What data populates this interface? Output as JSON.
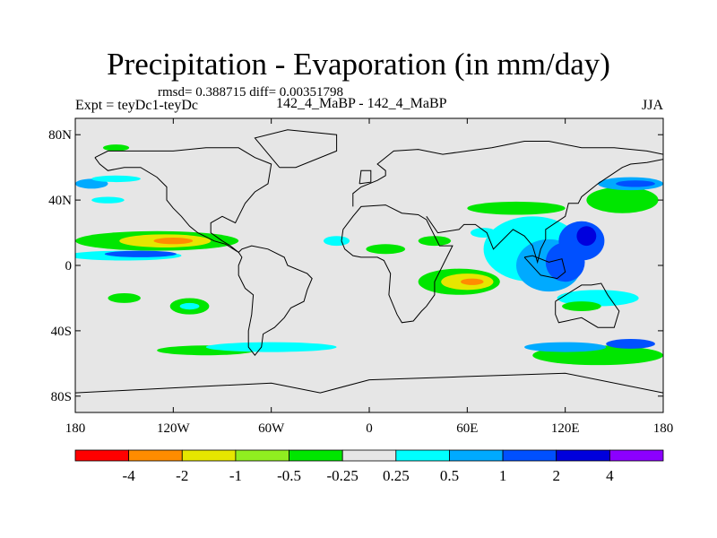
{
  "title": "Precipitation - Evaporation (in mm/day)",
  "stats": "rmsd= 0.388715 diff= 0.00351798",
  "subtitle_left": "Expt = teyDc1-teyDc",
  "subtitle_center": "142_4_MaBP - 142_4_MaBP",
  "subtitle_right": "JJA",
  "colors": {
    "levels": [
      "#ff0000",
      "#ff8c00",
      "#e6e600",
      "#90ee20",
      "#00e600",
      "#e6e6e6",
      "#00ffff",
      "#00aaff",
      "#0050ff",
      "#0000dd",
      "#8c00ff"
    ],
    "coast": "#000000"
  },
  "map": {
    "projection": "cylindrical-equidistant",
    "lon_range": [
      -180,
      180
    ],
    "lat_range": [
      -90,
      90
    ],
    "x_ticks": [
      {
        "value": -180,
        "label": "180"
      },
      {
        "value": -120,
        "label": "120W"
      },
      {
        "value": -60,
        "label": "60W"
      },
      {
        "value": 0,
        "label": "0"
      },
      {
        "value": 60,
        "label": "60E"
      },
      {
        "value": 120,
        "label": "120E"
      },
      {
        "value": 180,
        "label": "180"
      }
    ],
    "y_ticks": [
      {
        "value": 80,
        "label": "80N"
      },
      {
        "value": 40,
        "label": "40N"
      },
      {
        "value": 0,
        "label": "0"
      },
      {
        "value": -40,
        "label": "40S"
      },
      {
        "value": -80,
        "label": "80S"
      }
    ],
    "blobs": [
      {
        "lon": -130,
        "lat": 15,
        "rlon": 50,
        "rlat": 6,
        "level": 4
      },
      {
        "lon": -125,
        "lat": 15,
        "rlon": 28,
        "rlat": 4,
        "level": 2
      },
      {
        "lon": -120,
        "lat": 15,
        "rlon": 12,
        "rlat": 2,
        "level": 1
      },
      {
        "lon": -150,
        "lat": 6,
        "rlon": 35,
        "rlat": 3,
        "level": 6
      },
      {
        "lon": -140,
        "lat": 7,
        "rlon": 22,
        "rlat": 2,
        "level": 8
      },
      {
        "lon": -170,
        "lat": 50,
        "rlon": 10,
        "rlat": 3,
        "level": 7
      },
      {
        "lon": -155,
        "lat": 53,
        "rlon": 15,
        "rlat": 2,
        "level": 6
      },
      {
        "lon": -160,
        "lat": 40,
        "rlon": 10,
        "rlat": 2,
        "level": 6
      },
      {
        "lon": -155,
        "lat": 72,
        "rlon": 8,
        "rlat": 2,
        "level": 4
      },
      {
        "lon": -110,
        "lat": -25,
        "rlon": 12,
        "rlat": 5,
        "level": 4
      },
      {
        "lon": -110,
        "lat": -25,
        "rlon": 6,
        "rlat": 2,
        "level": 6
      },
      {
        "lon": -150,
        "lat": -20,
        "rlon": 10,
        "rlat": 3,
        "level": 4
      },
      {
        "lon": -100,
        "lat": -52,
        "rlon": 30,
        "rlat": 3,
        "level": 4
      },
      {
        "lon": -60,
        "lat": -50,
        "rlon": 40,
        "rlat": 3,
        "level": 6
      },
      {
        "lon": -20,
        "lat": 15,
        "rlon": 8,
        "rlat": 3,
        "level": 6
      },
      {
        "lon": 10,
        "lat": 10,
        "rlon": 12,
        "rlat": 3,
        "level": 4
      },
      {
        "lon": 55,
        "lat": -10,
        "rlon": 25,
        "rlat": 8,
        "level": 4
      },
      {
        "lon": 60,
        "lat": -10,
        "rlon": 16,
        "rlat": 5,
        "level": 2
      },
      {
        "lon": 63,
        "lat": -10,
        "rlon": 7,
        "rlat": 2,
        "level": 1
      },
      {
        "lon": 100,
        "lat": 10,
        "rlon": 30,
        "rlat": 20,
        "level": 6
      },
      {
        "lon": 110,
        "lat": 0,
        "rlon": 20,
        "rlat": 16,
        "level": 7
      },
      {
        "lon": 120,
        "lat": 2,
        "rlon": 12,
        "rlat": 12,
        "level": 8
      },
      {
        "lon": 130,
        "lat": 15,
        "rlon": 14,
        "rlat": 12,
        "level": 8
      },
      {
        "lon": 133,
        "lat": 18,
        "rlon": 6,
        "rlat": 6,
        "level": 9
      },
      {
        "lon": 90,
        "lat": 35,
        "rlon": 30,
        "rlat": 4,
        "level": 4
      },
      {
        "lon": 155,
        "lat": 40,
        "rlon": 22,
        "rlat": 8,
        "level": 4
      },
      {
        "lon": 160,
        "lat": 50,
        "rlon": 20,
        "rlat": 4,
        "level": 7
      },
      {
        "lon": 163,
        "lat": 50,
        "rlon": 12,
        "rlat": 2,
        "level": 8
      },
      {
        "lon": 140,
        "lat": -20,
        "rlon": 25,
        "rlat": 5,
        "level": 6
      },
      {
        "lon": 130,
        "lat": -25,
        "rlon": 12,
        "rlat": 3,
        "level": 4
      },
      {
        "lon": 140,
        "lat": -55,
        "rlon": 40,
        "rlat": 6,
        "level": 4
      },
      {
        "lon": 120,
        "lat": -50,
        "rlon": 25,
        "rlat": 3,
        "level": 7
      },
      {
        "lon": 160,
        "lat": -48,
        "rlon": 15,
        "rlat": 3,
        "level": 8
      },
      {
        "lon": 70,
        "lat": 20,
        "rlon": 8,
        "rlat": 3,
        "level": 6
      },
      {
        "lon": 40,
        "lat": 15,
        "rlon": 10,
        "rlat": 3,
        "level": 4
      }
    ],
    "coastlines": [
      [
        [
          -168,
          66
        ],
        [
          -160,
          70
        ],
        [
          -140,
          70
        ],
        [
          -120,
          70
        ],
        [
          -100,
          72
        ],
        [
          -80,
          72
        ],
        [
          -70,
          66
        ],
        [
          -60,
          62
        ],
        [
          -62,
          50
        ],
        [
          -70,
          45
        ],
        [
          -76,
          38
        ],
        [
          -80,
          30
        ],
        [
          -82,
          26
        ],
        [
          -90,
          30
        ],
        [
          -97,
          26
        ],
        [
          -97,
          20
        ],
        [
          -90,
          15
        ],
        [
          -85,
          12
        ],
        [
          -80,
          8
        ],
        [
          -78,
          10
        ],
        [
          -72,
          12
        ],
        [
          -62,
          10
        ],
        [
          -52,
          5
        ],
        [
          -50,
          0
        ],
        [
          -38,
          -5
        ],
        [
          -35,
          -8
        ],
        [
          -38,
          -15
        ],
        [
          -40,
          -22
        ],
        [
          -48,
          -26
        ],
        [
          -52,
          -32
        ],
        [
          -58,
          -38
        ],
        [
          -65,
          -42
        ],
        [
          -66,
          -50
        ],
        [
          -70,
          -55
        ],
        [
          -74,
          -50
        ],
        [
          -74,
          -40
        ],
        [
          -72,
          -30
        ],
        [
          -71,
          -18
        ],
        [
          -76,
          -14
        ],
        [
          -80,
          -6
        ],
        [
          -80,
          0
        ],
        [
          -78,
          5
        ],
        [
          -80,
          8
        ],
        [
          -88,
          13
        ],
        [
          -95,
          15
        ],
        [
          -105,
          20
        ],
        [
          -110,
          24
        ],
        [
          -115,
          30
        ],
        [
          -120,
          35
        ],
        [
          -124,
          40
        ],
        [
          -124,
          48
        ],
        [
          -130,
          54
        ],
        [
          -140,
          60
        ],
        [
          -150,
          60
        ],
        [
          -160,
          58
        ],
        [
          -165,
          62
        ],
        [
          -168,
          66
        ]
      ],
      [
        [
          -10,
          36
        ],
        [
          -10,
          44
        ],
        [
          -5,
          48
        ],
        [
          5,
          52
        ],
        [
          10,
          55
        ],
        [
          10,
          58
        ],
        [
          5,
          62
        ],
        [
          15,
          70
        ],
        [
          30,
          71
        ],
        [
          45,
          68
        ],
        [
          60,
          70
        ],
        [
          75,
          72
        ],
        [
          95,
          76
        ],
        [
          110,
          76
        ],
        [
          130,
          72
        ],
        [
          150,
          72
        ],
        [
          170,
          70
        ],
        [
          180,
          68
        ]
      ],
      [
        [
          -17,
          15
        ],
        [
          -16,
          22
        ],
        [
          -10,
          30
        ],
        [
          -5,
          36
        ],
        [
          10,
          37
        ],
        [
          20,
          32
        ],
        [
          30,
          31
        ],
        [
          35,
          28
        ],
        [
          43,
          12
        ],
        [
          51,
          12
        ],
        [
          45,
          0
        ],
        [
          40,
          -10
        ],
        [
          40,
          -18
        ],
        [
          35,
          -25
        ],
        [
          32,
          -28
        ],
        [
          27,
          -34
        ],
        [
          20,
          -35
        ],
        [
          17,
          -30
        ],
        [
          12,
          -18
        ],
        [
          13,
          -5
        ],
        [
          9,
          3
        ],
        [
          5,
          5
        ],
        [
          -5,
          5
        ],
        [
          -10,
          6
        ],
        [
          -15,
          10
        ],
        [
          -17,
          15
        ]
      ],
      [
        [
          35,
          30
        ],
        [
          42,
          20
        ],
        [
          55,
          22
        ],
        [
          58,
          25
        ],
        [
          65,
          25
        ],
        [
          72,
          20
        ],
        [
          76,
          10
        ],
        [
          80,
          14
        ],
        [
          88,
          22
        ],
        [
          95,
          18
        ],
        [
          100,
          12
        ],
        [
          103,
          2
        ],
        [
          105,
          10
        ],
        [
          108,
          16
        ],
        [
          108,
          22
        ],
        [
          120,
          30
        ],
        [
          122,
          38
        ],
        [
          128,
          38
        ],
        [
          130,
          42
        ],
        [
          140,
          50
        ],
        [
          155,
          60
        ],
        [
          160,
          62
        ],
        [
          170,
          63
        ],
        [
          180,
          65
        ]
      ],
      [
        [
          114,
          -22
        ],
        [
          114,
          -30
        ],
        [
          116,
          -35
        ],
        [
          130,
          -32
        ],
        [
          140,
          -38
        ],
        [
          150,
          -38
        ],
        [
          153,
          -28
        ],
        [
          146,
          -18
        ],
        [
          142,
          -11
        ],
        [
          136,
          -12
        ],
        [
          130,
          -12
        ],
        [
          122,
          -17
        ],
        [
          114,
          -22
        ]
      ],
      [
        [
          -180,
          -78
        ],
        [
          -100,
          -74
        ],
        [
          -60,
          -72
        ],
        [
          -30,
          -78
        ],
        [
          0,
          -70
        ],
        [
          60,
          -68
        ],
        [
          120,
          -66
        ],
        [
          180,
          -78
        ]
      ],
      [
        [
          -55,
          60
        ],
        [
          -45,
          60
        ],
        [
          -20,
          70
        ],
        [
          -20,
          80
        ],
        [
          -50,
          83
        ],
        [
          -70,
          78
        ],
        [
          -55,
          60
        ]
      ],
      [
        [
          95,
          5
        ],
        [
          105,
          -6
        ],
        [
          115,
          -8
        ],
        [
          120,
          -4
        ],
        [
          118,
          4
        ],
        [
          110,
          2
        ],
        [
          100,
          6
        ],
        [
          95,
          5
        ]
      ],
      [
        [
          -6,
          50
        ],
        [
          -5,
          58
        ],
        [
          1,
          58
        ],
        [
          1,
          51
        ],
        [
          -6,
          50
        ]
      ]
    ]
  },
  "colorbar": {
    "labels": [
      "-4",
      "-2",
      "-1",
      "-0.5",
      "-0.25",
      "0.25",
      "0.5",
      "1",
      "2",
      "4"
    ]
  }
}
